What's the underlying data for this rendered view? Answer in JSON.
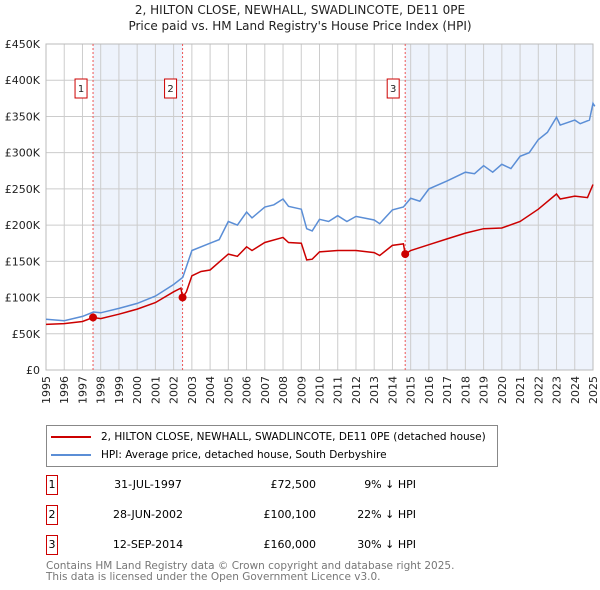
{
  "chart_data": {
    "type": "line",
    "title": "2, HILTON CLOSE, NEWHALL, SWADLINCOTE, DE11 0PE",
    "subtitle": "Price paid vs. HM Land Registry's House Price Index (HPI)",
    "xlim": [
      1995,
      2025
    ],
    "ylim": [
      0,
      450000
    ],
    "yticks": [
      0,
      50000,
      100000,
      150000,
      200000,
      250000,
      300000,
      350000,
      400000,
      450000
    ],
    "ytick_labels": [
      "£0",
      "£50K",
      "£100K",
      "£150K",
      "£200K",
      "£250K",
      "£300K",
      "£350K",
      "£400K",
      "£450K"
    ],
    "xticks": [
      "1995",
      "1996",
      "1997",
      "1998",
      "1999",
      "2000",
      "2001",
      "2002",
      "2003",
      "2004",
      "2005",
      "2006",
      "2007",
      "2008",
      "2009",
      "2010",
      "2011",
      "2012",
      "2013",
      "2014",
      "2015",
      "2016",
      "2017",
      "2018",
      "2019",
      "2020",
      "2021",
      "2022",
      "2023",
      "2024",
      "2025"
    ],
    "grid": true,
    "series": [
      {
        "name": "2, HILTON CLOSE, NEWHALL, SWADLINCOTE, DE11 0PE (detached house)",
        "color": "#cc0000",
        "x": [
          1995,
          1996,
          1997,
          1997.58,
          1998,
          1999,
          2000,
          2001,
          2002,
          2002.4,
          2002.49,
          2002.7,
          2003,
          2003.5,
          2004,
          2005,
          2005.5,
          2006,
          2006.3,
          2007,
          2008,
          2008.3,
          2009,
          2009.3,
          2009.6,
          2010,
          2011,
          2012,
          2013,
          2013.3,
          2014,
          2014.6,
          2014.7,
          2015,
          2016,
          2017,
          2018,
          2019,
          2020,
          2021,
          2022,
          2023,
          2023.2,
          2024,
          2024.7,
          2025
        ],
        "y": [
          63000,
          64000,
          67000,
          72500,
          71000,
          77000,
          84000,
          93000,
          108000,
          113000,
          100100,
          108000,
          130000,
          136000,
          138000,
          160000,
          157000,
          170000,
          165000,
          176000,
          183000,
          176000,
          175000,
          152000,
          153000,
          163000,
          165000,
          165000,
          162000,
          158000,
          172000,
          174000,
          160000,
          165000,
          173000,
          181000,
          189000,
          195000,
          196000,
          205000,
          222000,
          243000,
          236000,
          240000,
          238000,
          256000
        ]
      },
      {
        "name": "HPI: Average price, detached house, South Derbyshire",
        "color": "#5b8ed6",
        "x": [
          1995,
          1996,
          1997,
          1997.6,
          1998,
          1999,
          2000,
          2001,
          2002,
          2002.5,
          2003,
          2004,
          2004.5,
          2005,
          2005.5,
          2006,
          2006.3,
          2007,
          2007.5,
          2008,
          2008.3,
          2009,
          2009.3,
          2009.6,
          2010,
          2010.5,
          2011,
          2011.5,
          2012,
          2013,
          2013.3,
          2014,
          2014.6,
          2015,
          2015.5,
          2016,
          2017,
          2018,
          2018.5,
          2019,
          2019.5,
          2020,
          2020.5,
          2021,
          2021.5,
          2022,
          2022.5,
          2023,
          2023.2,
          2024,
          2024.3,
          2024.8,
          2025,
          2025.1
        ],
        "y": [
          70000,
          68000,
          74000,
          80000,
          79000,
          85000,
          92000,
          102000,
          118000,
          128000,
          165000,
          175000,
          180000,
          205000,
          200000,
          218000,
          210000,
          225000,
          228000,
          236000,
          226000,
          222000,
          195000,
          192000,
          208000,
          205000,
          213000,
          205000,
          212000,
          207000,
          202000,
          221000,
          225000,
          237000,
          233000,
          250000,
          261000,
          273000,
          271000,
          282000,
          273000,
          284000,
          278000,
          295000,
          300000,
          318000,
          328000,
          349000,
          338000,
          345000,
          340000,
          345000,
          368000,
          364000
        ]
      }
    ],
    "sales": [
      {
        "n": "1",
        "x": 1997.58,
        "date": "31-JUL-1997",
        "price": "£72,500",
        "value": 72500,
        "hpi": "9% ↓ HPI"
      },
      {
        "n": "2",
        "x": 2002.49,
        "date": "28-JUN-2002",
        "price": "£100,100",
        "value": 100100,
        "hpi": "22% ↓ HPI"
      },
      {
        "n": "3",
        "x": 2014.7,
        "date": "12-SEP-2014",
        "price": "£160,000",
        "value": 160000,
        "hpi": "30% ↓ HPI"
      }
    ]
  },
  "footer": {
    "line1": "Contains HM Land Registry data © Crown copyright and database right 2025.",
    "line2": "This data is licensed under the Open Government Licence v3.0."
  }
}
